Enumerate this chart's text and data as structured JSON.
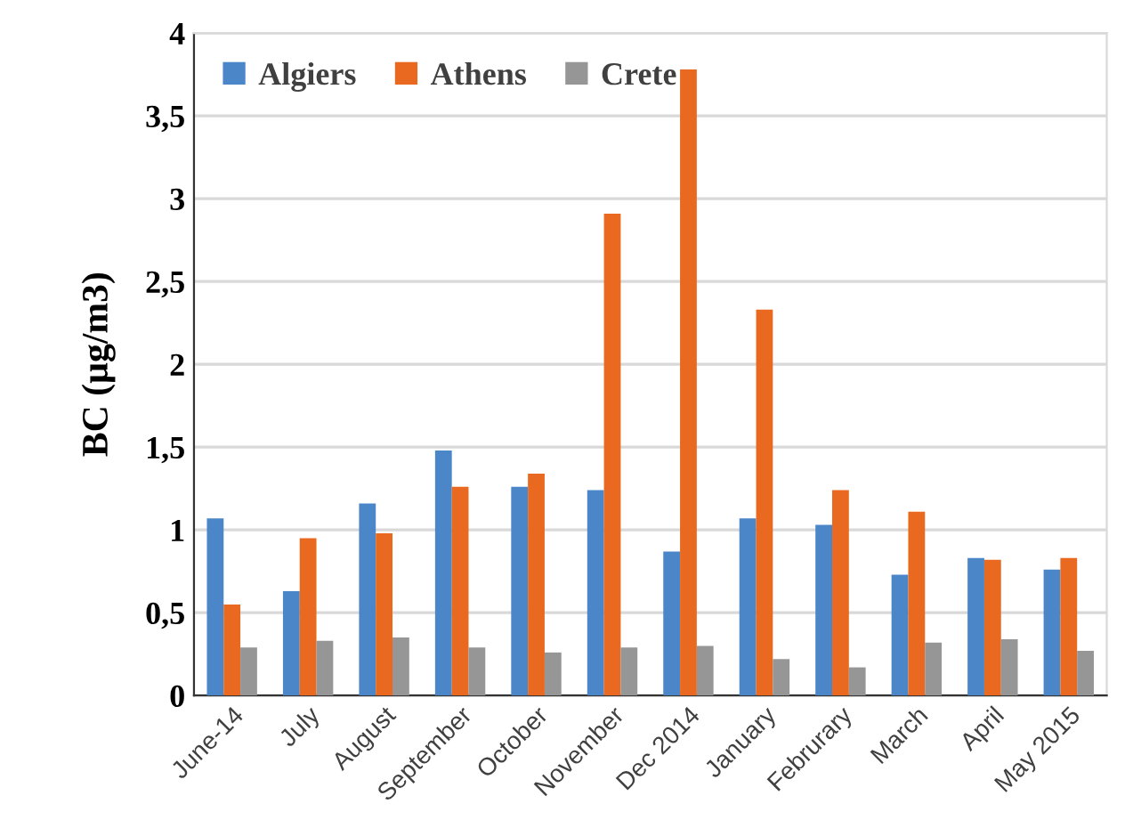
{
  "chart_data": {
    "type": "bar",
    "ylabel": "BC (µg/m3)",
    "categories": [
      "June-14",
      "July",
      "August",
      "September",
      "October",
      "November",
      "Dec 2014",
      "January",
      "Februrary",
      "March",
      "April",
      "May 2015"
    ],
    "series": [
      {
        "name": "Algiers",
        "color": "#4a86c8",
        "values": [
          1.07,
          0.63,
          1.16,
          1.48,
          1.26,
          1.24,
          0.87,
          1.07,
          1.03,
          0.73,
          0.83,
          0.76
        ]
      },
      {
        "name": "Athens",
        "color": "#e8691f",
        "values": [
          0.55,
          0.95,
          0.98,
          1.26,
          1.34,
          2.91,
          3.78,
          2.33,
          1.24,
          1.11,
          0.82,
          0.83
        ]
      },
      {
        "name": "Crete",
        "color": "#969696",
        "values": [
          0.29,
          0.33,
          0.35,
          0.29,
          0.26,
          0.29,
          0.3,
          0.22,
          0.17,
          0.32,
          0.34,
          0.27
        ]
      }
    ],
    "ylim": [
      0,
      4
    ],
    "yticks": [
      0,
      {
        "value": 0.5,
        "label": "0,5"
      },
      1,
      {
        "value": 1.5,
        "label": "1,5"
      },
      2,
      {
        "value": 2.5,
        "label": "2,5"
      },
      3,
      {
        "value": 3.5,
        "label": "3,5"
      },
      4
    ],
    "grid": "y",
    "legend": "top left"
  }
}
